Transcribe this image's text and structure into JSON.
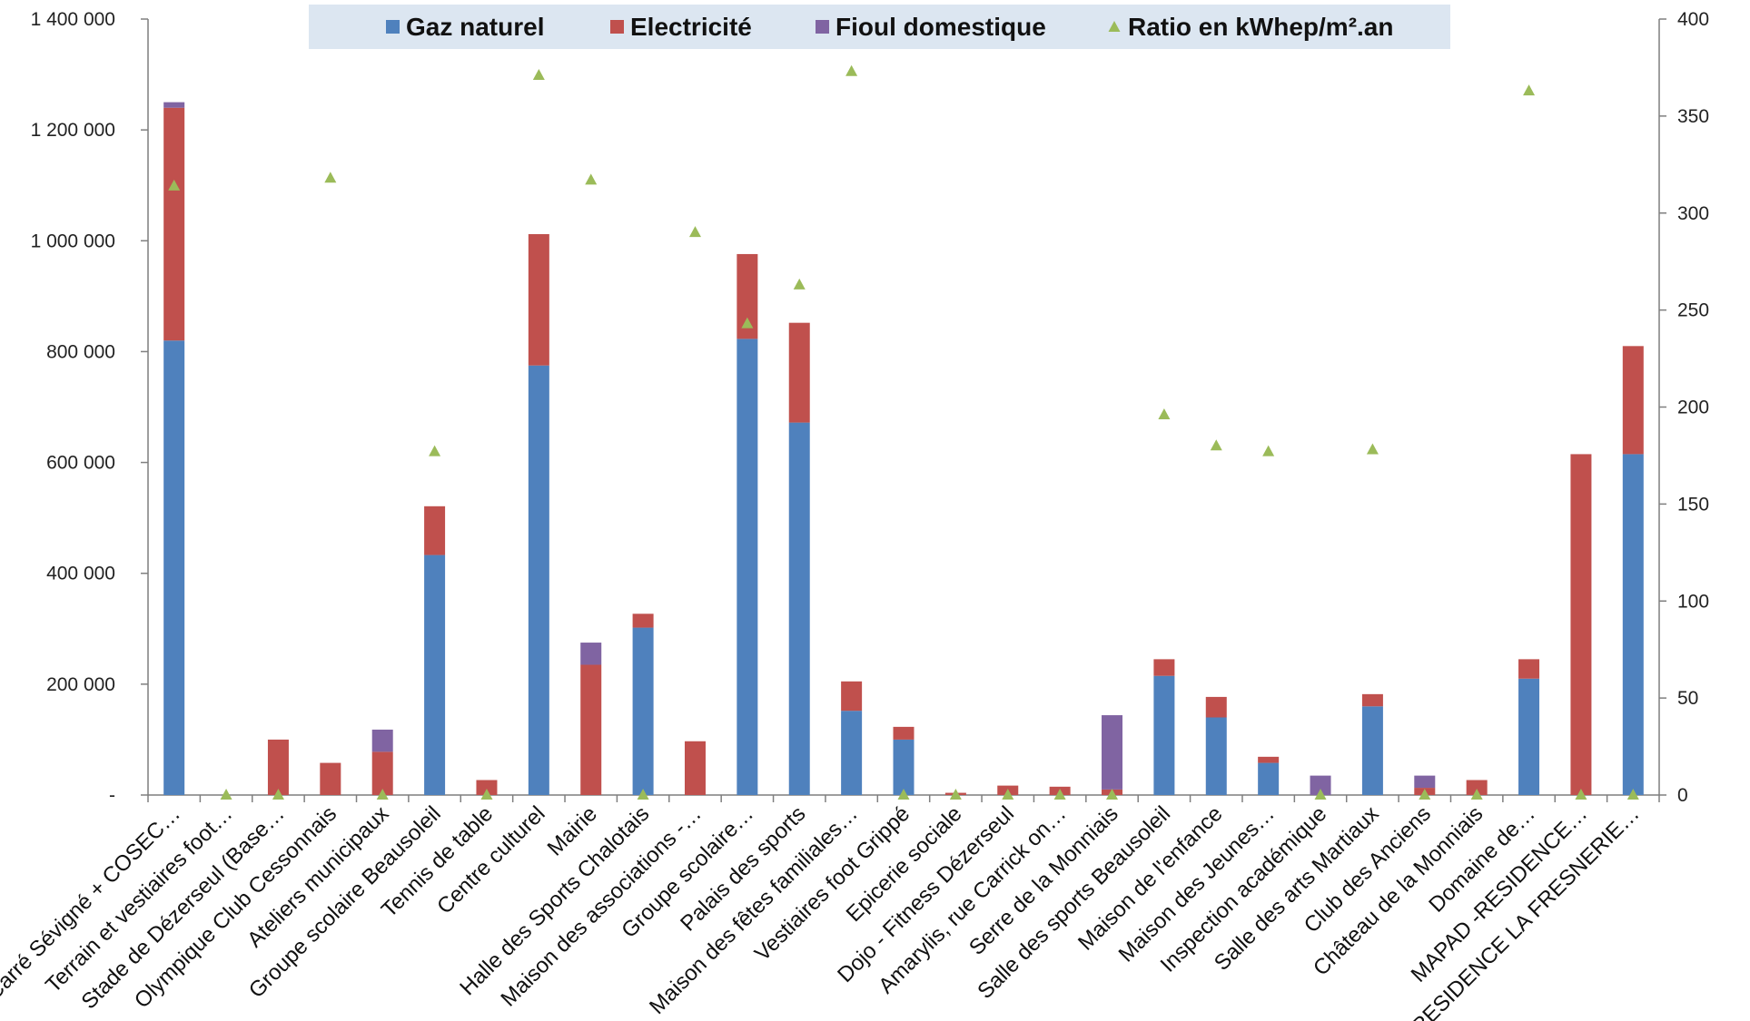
{
  "chart_data": {
    "type": "bar",
    "stacked": true,
    "legend": {
      "placement": "top",
      "background": "#dce6f1"
    },
    "categories": [
      "Carré Sévigné + COSEC…",
      "Terrain et vestiaires foot…",
      "Stade de Dézerseul (Base…",
      "Olympique Club Cessonnais",
      "Ateliers municipaux",
      "Groupe scolaire Beausoleil",
      "Tennis de table",
      "Centre culturel",
      "Mairie",
      "Halle des Sports Chalotais",
      "Maison des associations -…",
      "Groupe scolaire…",
      "Palais des sports",
      "Maison des fêtes familiales…",
      "Vestiaires foot Grippé",
      "Epicerie sociale",
      "Dojo - Fitness Dézerseul",
      "Amarylis, rue Carrick on…",
      "Serre de la Monniais",
      "Salle des sports Beausoleil",
      "Maison de l'enfance",
      "Maison des Jeunes…",
      "Inspection académique",
      "Salle des arts Martiaux",
      "Club des Anciens",
      "Château de la Monniais",
      "Domaine de…",
      "MAPAD -RESIDENCE…",
      "RESIDENCE LA FRESNERIE…"
    ],
    "series": [
      {
        "name": "Gaz naturel",
        "color": "#4f81bd",
        "values": [
          820000,
          0,
          0,
          0,
          0,
          433000,
          0,
          775000,
          0,
          302000,
          0,
          823000,
          672000,
          152000,
          100000,
          0,
          0,
          0,
          0,
          215000,
          140000,
          58000,
          0,
          160000,
          0,
          0,
          210000,
          0,
          615000
        ]
      },
      {
        "name": "Electricité",
        "color": "#c0504d",
        "values": [
          420000,
          0,
          100000,
          58000,
          78000,
          88000,
          27000,
          237000,
          235000,
          25000,
          97000,
          153000,
          180000,
          53000,
          23000,
          4000,
          17000,
          15000,
          10000,
          30000,
          37000,
          11000,
          0,
          22000,
          13000,
          27000,
          35000,
          615000,
          195000
        ]
      },
      {
        "name": "Fioul domestique",
        "color": "#8064a2",
        "values": [
          10000,
          0,
          0,
          0,
          40000,
          0,
          0,
          0,
          40000,
          0,
          0,
          0,
          0,
          0,
          0,
          0,
          0,
          0,
          134000,
          0,
          0,
          0,
          35000,
          0,
          22000,
          0,
          0,
          0,
          0
        ]
      }
    ],
    "ratio_series": {
      "name": "Ratio en kWhep/m².an",
      "color": "#9bbb59",
      "axis": "secondary",
      "values": [
        314,
        0,
        0,
        318,
        0,
        177,
        0,
        371,
        317,
        0,
        290,
        243,
        263,
        373,
        0,
        0,
        0,
        0,
        0,
        196,
        180,
        177,
        0,
        178,
        0,
        0,
        363,
        0,
        0
      ]
    },
    "y_axis_left": {
      "min": 0,
      "max": 1400000,
      "ticks": [
        {
          "value": 0,
          "label": "-"
        },
        {
          "value": 200000,
          "label": "200 000"
        },
        {
          "value": 400000,
          "label": "400 000"
        },
        {
          "value": 600000,
          "label": "600 000"
        },
        {
          "value": 800000,
          "label": "800 000"
        },
        {
          "value": 1000000,
          "label": "1 000 000"
        },
        {
          "value": 1200000,
          "label": "1 200 000"
        },
        {
          "value": 1400000,
          "label": "1 400 000"
        }
      ]
    },
    "y_axis_right": {
      "min": 0,
      "max": 400,
      "ticks": [
        {
          "value": 0,
          "label": "0"
        },
        {
          "value": 50,
          "label": "50"
        },
        {
          "value": 100,
          "label": "100"
        },
        {
          "value": 150,
          "label": "150"
        },
        {
          "value": 200,
          "label": "200"
        },
        {
          "value": 250,
          "label": "250"
        },
        {
          "value": 300,
          "label": "300"
        },
        {
          "value": 350,
          "label": "350"
        },
        {
          "value": 400,
          "label": "400"
        }
      ]
    },
    "grid": false
  }
}
